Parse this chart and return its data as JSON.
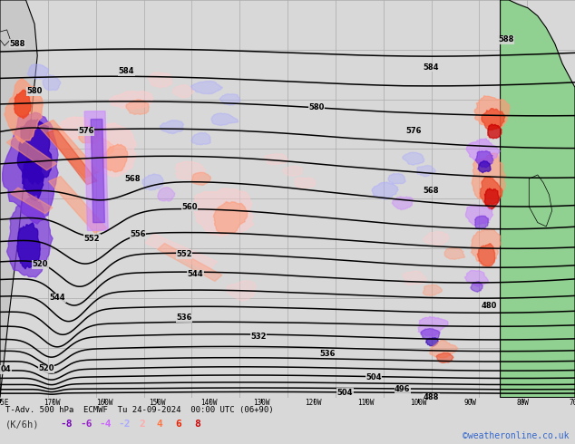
{
  "fig_width": 6.34,
  "fig_height": 4.9,
  "dpi": 100,
  "bg_color": "#d8d8d8",
  "ocean_color": "#d8d8d8",
  "land_color_left": "#c8c8c8",
  "land_color_right": "#90d090",
  "grid_color": "#aaaaaa",
  "contour_color": "#000000",
  "title_text": "T-Adv. 500 hPa  ECMWF  Tu 24-09-2024  00:00 UTC (06+90)",
  "bottom_left": "(K/6h)",
  "watermark": "©weatheronline.co.uk",
  "watermark_color": "#3366cc",
  "neg_labels": [
    "-8",
    "-6",
    "-4",
    "-2"
  ],
  "pos_labels": [
    "2",
    "4",
    "6",
    "8"
  ],
  "neg_label_colors": [
    "#7700bb",
    "#9922cc",
    "#cc66ff",
    "#aaaaff"
  ],
  "pos_label_colors": [
    "#ffaaaa",
    "#ff7744",
    "#ee2200",
    "#cc0000"
  ],
  "cold_dark": "#3300bb",
  "cold_mid": "#7733dd",
  "cold_light": "#cc88ff",
  "cold_pale": "#aaaaff",
  "warm_dark": "#cc0000",
  "warm_mid": "#ee4422",
  "warm_light": "#ff9977",
  "warm_pale": "#ffcccc",
  "warm_blue": "#aaccff",
  "bottom_bar_color": "#ffffff",
  "contour_lw": 1.1,
  "label_fontsize": 6.0
}
